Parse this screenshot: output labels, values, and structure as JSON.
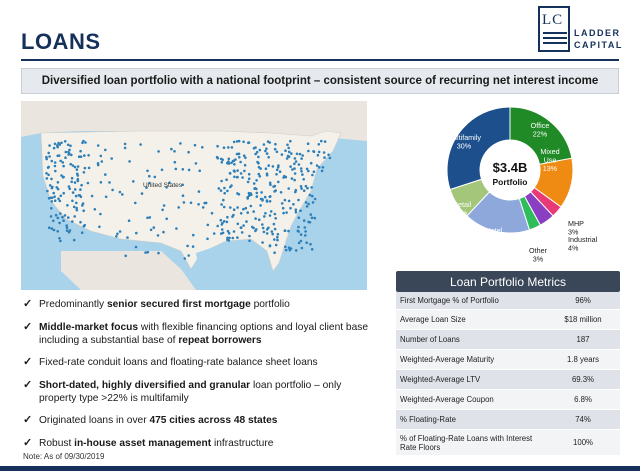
{
  "header": {
    "title": "LOANS",
    "logo": {
      "mark": "LC",
      "line1": "LADDER",
      "line2": "CAPITAL",
      "color": "#16305c"
    }
  },
  "banner": "Diversified loan portfolio with a national footprint – consistent source of recurring net interest income",
  "map": {
    "label": "United States"
  },
  "bullets": [
    {
      "parts": [
        [
          "Predominantly ",
          false
        ],
        [
          "senior secured first mortgage",
          true
        ],
        [
          " portfolio",
          false
        ]
      ]
    },
    {
      "parts": [
        [
          "Middle-market focus",
          true
        ],
        [
          " with flexible financing options and loyal client base including a substantial base of ",
          false
        ],
        [
          "repeat borrowers",
          true
        ]
      ]
    },
    {
      "parts": [
        [
          "Fixed-rate conduit loans and floating-rate balance sheet loans",
          false
        ]
      ]
    },
    {
      "parts": [
        [
          "Short-dated, highly diversified and granular",
          true
        ],
        [
          " loan portfolio – only property type >22% is multifamily",
          false
        ]
      ]
    },
    {
      "parts": [
        [
          "Originated loans in over ",
          false
        ],
        [
          "475 cities across 48 states",
          true
        ]
      ]
    },
    {
      "parts": [
        [
          "Robust ",
          false
        ],
        [
          "in-house asset management",
          true
        ],
        [
          " infrastructure",
          false
        ]
      ]
    }
  ],
  "note": "Note: As of 09/30/2019",
  "chart_data": {
    "type": "pie",
    "center_value": "$3.4B",
    "center_label": "Portfolio",
    "slices": [
      {
        "label": "Office",
        "pct": "22%",
        "value": 22,
        "color": "#1f8a26"
      },
      {
        "label": "Mixed Use",
        "pct": "13%",
        "value": 13,
        "color": "#ef8a13"
      },
      {
        "label": "MHP",
        "pct": "3%",
        "value": 3,
        "color": "#e83a76"
      },
      {
        "label": "Industrial",
        "pct": "4%",
        "value": 4,
        "color": "#8a3ec2"
      },
      {
        "label": "Other",
        "pct": "3%",
        "value": 3,
        "color": "#2fbd5a"
      },
      {
        "label": "Hotel",
        "pct": "17%",
        "value": 17,
        "color": "#8fa8dc"
      },
      {
        "label": "Retail",
        "pct": "8%",
        "value": 8,
        "color": "#a3c67a"
      },
      {
        "label": "Multifamily",
        "pct": "30%",
        "value": 30,
        "color": "#1c4f8c"
      }
    ]
  },
  "metrics": {
    "title": "Loan Portfolio Metrics",
    "rows": [
      {
        "label": "First Mortgage % of Portfolio",
        "value": "96%"
      },
      {
        "label": "Average Loan Size",
        "value": "$18 million"
      },
      {
        "label": "Number of Loans",
        "value": "187"
      },
      {
        "label": "Weighted-Average Maturity",
        "value": "1.8 years"
      },
      {
        "label": "Weighted-Average LTV",
        "value": "69.3%"
      },
      {
        "label": "Weighted-Average Coupon",
        "value": "6.8%"
      },
      {
        "label": "% Floating-Rate",
        "value": "74%"
      },
      {
        "label": "% of Floating-Rate Loans with Interest Rate Floors",
        "value": "100%"
      }
    ]
  }
}
